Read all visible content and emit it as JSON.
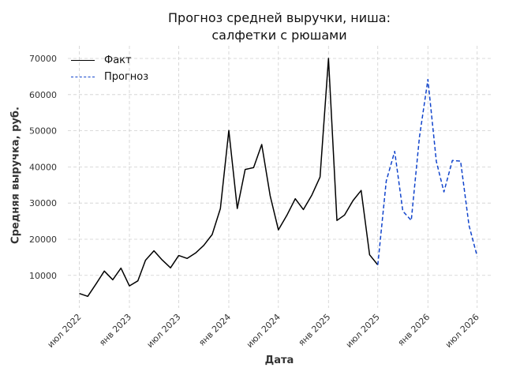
{
  "chart_data": {
    "type": "line",
    "title": [
      "Прогноз средней выручки, ниша:",
      "салфетки с рюшами"
    ],
    "xlabel": "Дата",
    "ylabel": "Средняя выручка, руб.",
    "x_ticks": [
      "2022-07-01",
      "2023-01-01",
      "2023-07-01",
      "2024-01-01",
      "2024-07-01",
      "2025-01-01",
      "2025-07-01",
      "2026-01-01",
      "2026-07-01"
    ],
    "x_tick_labels": [
      "июл 2022",
      "янв 2023",
      "июл 2023",
      "янв 2024",
      "июл 2024",
      "янв 2025",
      "июл 2025",
      "янв 2026",
      "июл 2026"
    ],
    "y_ticks": [
      10000,
      20000,
      30000,
      40000,
      50000,
      60000,
      70000
    ],
    "y_tick_labels": [
      "10000",
      "20000",
      "30000",
      "40000",
      "50000",
      "60000",
      "70000"
    ],
    "ylim": [
      1000,
      73500
    ],
    "xlim": [
      "2022-05-20",
      "2026-08-20"
    ],
    "grid": true,
    "legend_position": "top-left",
    "series": [
      {
        "name": "Факт",
        "color": "#000000",
        "style": "solid",
        "x": [
          "2022-07-01",
          "2022-08-01",
          "2022-09-01",
          "2022-10-01",
          "2022-11-01",
          "2022-12-01",
          "2023-01-01",
          "2023-02-01",
          "2023-03-01",
          "2023-04-01",
          "2023-05-01",
          "2023-06-01",
          "2023-07-01",
          "2023-08-01",
          "2023-09-01",
          "2023-10-01",
          "2023-11-01",
          "2023-12-01",
          "2024-01-01",
          "2024-02-01",
          "2024-03-01",
          "2024-04-01",
          "2024-05-01",
          "2024-06-01",
          "2024-07-01",
          "2024-08-01",
          "2024-09-01",
          "2024-10-01",
          "2024-11-01",
          "2024-12-01",
          "2025-01-01",
          "2025-02-01",
          "2025-03-01",
          "2025-04-01",
          "2025-05-01",
          "2025-06-01",
          "2025-07-01"
        ],
        "values": [
          5000,
          4200,
          7700,
          11200,
          8800,
          12000,
          7100,
          8500,
          14200,
          16800,
          14300,
          12100,
          15500,
          14700,
          16200,
          18300,
          21300,
          28500,
          50100,
          28500,
          39300,
          39800,
          46200,
          32000,
          22600,
          26600,
          31200,
          28200,
          32200,
          37200,
          70000,
          25200,
          26700,
          30700,
          33500,
          15700,
          12900
        ]
      },
      {
        "name": "Прогноз",
        "color": "#1144cc",
        "style": "dashed",
        "x": [
          "2025-07-01",
          "2025-08-01",
          "2025-09-01",
          "2025-10-01",
          "2025-11-01",
          "2025-12-01",
          "2026-01-01",
          "2026-02-01",
          "2026-03-01",
          "2026-04-01",
          "2026-05-01",
          "2026-06-01",
          "2026-07-01"
        ],
        "values": [
          12900,
          36100,
          44300,
          27800,
          25200,
          48300,
          64200,
          41500,
          33100,
          41800,
          41600,
          23800,
          15300
        ]
      }
    ]
  }
}
